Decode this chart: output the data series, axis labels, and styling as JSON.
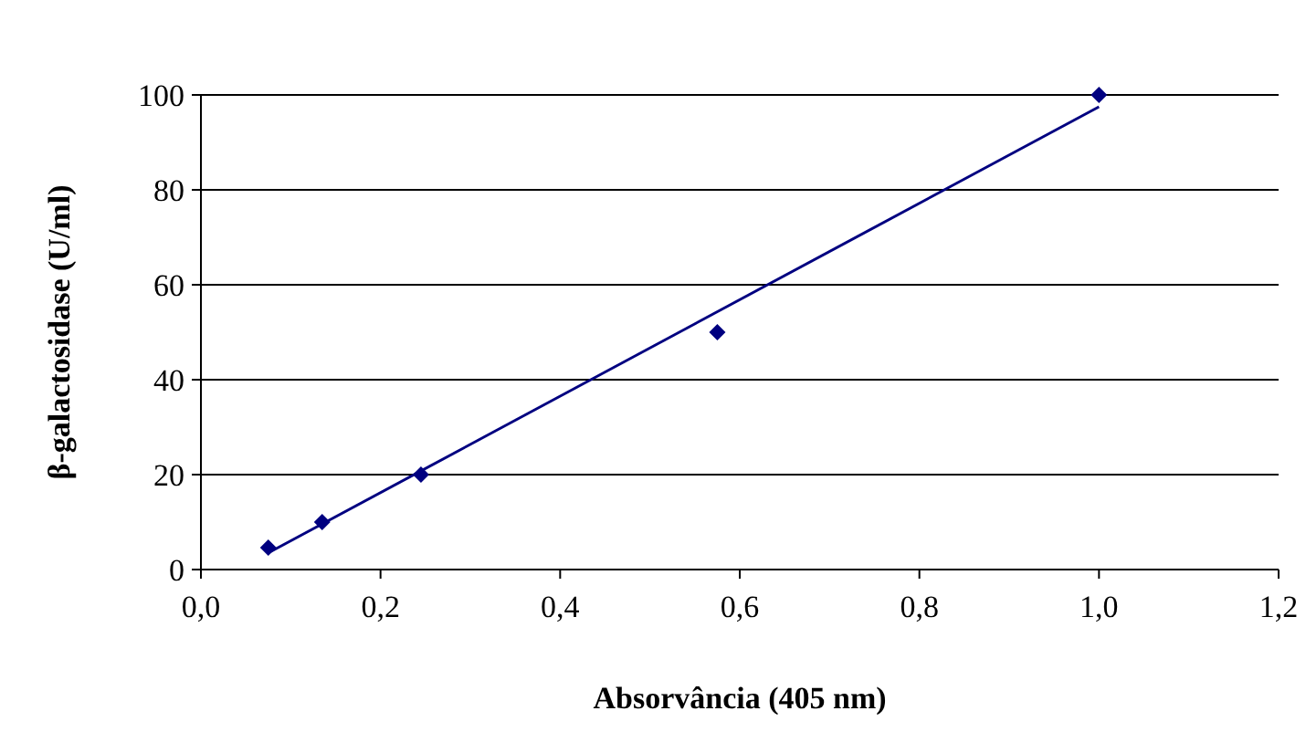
{
  "chart_data": {
    "type": "scatter",
    "xlabel": "Absorvância (405 nm)",
    "ylabel": "β-galactosidase (U/ml)",
    "xlim": [
      0,
      1.2
    ],
    "xticks": [
      {
        "value": 0,
        "label": "0,0"
      },
      {
        "value": 0.2,
        "label": "0,2"
      },
      {
        "value": 0.4,
        "label": "0,4"
      },
      {
        "value": 0.6,
        "label": "0,6"
      },
      {
        "value": 0.8,
        "label": "0,8"
      },
      {
        "value": 1,
        "label": "1,0"
      },
      {
        "value": 1.2,
        "label": "1,2"
      }
    ],
    "ylim": [
      0,
      100
    ],
    "yticks": [
      0,
      20,
      40,
      60,
      80,
      100
    ],
    "grid": "y",
    "marker": "diamond",
    "series": [
      {
        "color": "#000080",
        "x": [
          0.075,
          0.135,
          0.245,
          0.575,
          1.0
        ],
        "values": [
          4.6,
          10,
          20,
          50,
          100
        ]
      },
      {
        "type": "line",
        "color": "#000080",
        "marker": "none",
        "x": [
          0.075,
          1.0
        ],
        "values": [
          3.5,
          97.5
        ]
      }
    ]
  }
}
